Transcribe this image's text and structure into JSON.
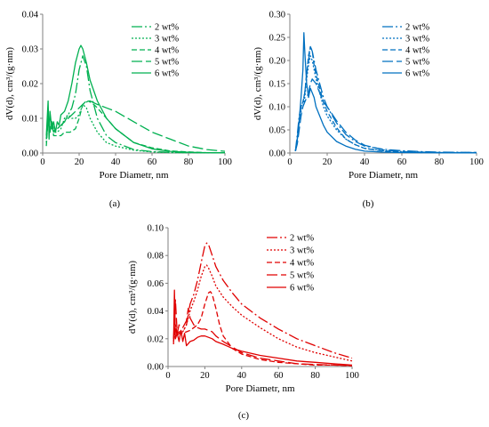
{
  "colors": {
    "green": "#00b050",
    "blue": "#0070c0",
    "red": "#e00000",
    "axis": "#808080"
  },
  "chart_data": [
    {
      "type": "line",
      "panel": "(a)",
      "color": "#00b050",
      "xlabel": "Pore Diametr, nm",
      "ylabel": "dV(d), cm³/(g·nm)",
      "xlim": [
        0,
        100
      ],
      "ylim": [
        0,
        0.04
      ],
      "xticks": [
        "0",
        "20",
        "40",
        "60",
        "80",
        "100"
      ],
      "yticks": [
        "0.00",
        "0.01",
        "0.02",
        "0.03",
        "0.04"
      ],
      "legend_position": "top-right",
      "series": [
        {
          "name": "2 wt%",
          "dash": "12 3 2 3",
          "x": [
            2,
            3,
            4,
            5,
            6,
            7,
            8,
            10,
            12,
            14,
            16,
            18,
            20,
            22,
            24,
            26,
            30,
            35,
            40,
            50,
            60,
            70,
            80,
            90,
            100
          ],
          "y": [
            0.004,
            0.009,
            0.006,
            0.008,
            0.006,
            0.007,
            0.007,
            0.008,
            0.009,
            0.011,
            0.013,
            0.017,
            0.024,
            0.028,
            0.025,
            0.018,
            0.01,
            0.005,
            0.003,
            0.001,
            0.0004,
            0.0002,
            0.0001,
            0.0001,
            0.0001
          ]
        },
        {
          "name": "3 wt%",
          "dash": "2 2",
          "x": [
            2,
            3,
            4,
            5,
            6,
            8,
            10,
            12,
            14,
            16,
            18,
            20,
            22,
            24,
            26,
            30,
            35,
            40,
            50,
            60,
            70,
            80,
            90,
            100
          ],
          "y": [
            0.003,
            0.011,
            0.007,
            0.009,
            0.006,
            0.006,
            0.007,
            0.01,
            0.011,
            0.01,
            0.01,
            0.011,
            0.014,
            0.013,
            0.01,
            0.006,
            0.003,
            0.002,
            0.0008,
            0.0003,
            0.0001,
            0.0001,
            0.0001,
            0.0001
          ]
        },
        {
          "name": "4 wt%",
          "dash": "6 3",
          "x": [
            2,
            3,
            4,
            5,
            6,
            8,
            10,
            12,
            15,
            18,
            20,
            22,
            25,
            28,
            30,
            35,
            40,
            50,
            60,
            70,
            80,
            90,
            100
          ],
          "y": [
            0.002,
            0.01,
            0.006,
            0.009,
            0.005,
            0.005,
            0.005,
            0.006,
            0.006,
            0.007,
            0.01,
            0.014,
            0.015,
            0.014,
            0.013,
            0.01,
            0.007,
            0.003,
            0.0015,
            0.0006,
            0.0003,
            0.0001,
            0.0001
          ]
        },
        {
          "name": "5 wt%",
          "dash": "12 4",
          "x": [
            2,
            3,
            4,
            5,
            6,
            8,
            10,
            12,
            14,
            16,
            18,
            20,
            22,
            24,
            26,
            30,
            35,
            40,
            50,
            60,
            70,
            80,
            90,
            100
          ],
          "y": [
            0.004,
            0.009,
            0.007,
            0.009,
            0.007,
            0.007,
            0.008,
            0.009,
            0.01,
            0.011,
            0.012,
            0.013,
            0.014,
            0.015,
            0.015,
            0.014,
            0.013,
            0.012,
            0.009,
            0.006,
            0.004,
            0.002,
            0.001,
            0.0005
          ]
        },
        {
          "name": "6 wt%",
          "dash": "",
          "x": [
            2,
            3,
            3.5,
            4,
            5,
            6,
            7,
            8,
            9,
            10,
            12,
            14,
            16,
            18,
            20,
            21,
            22,
            24,
            26,
            30,
            35,
            40,
            50,
            60,
            70,
            80,
            90,
            100
          ],
          "y": [
            0.005,
            0.015,
            0.004,
            0.012,
            0.007,
            0.009,
            0.006,
            0.009,
            0.008,
            0.011,
            0.012,
            0.015,
            0.02,
            0.026,
            0.03,
            0.031,
            0.03,
            0.026,
            0.021,
            0.015,
            0.01,
            0.007,
            0.003,
            0.0012,
            0.0005,
            0.0002,
            0.0001,
            0.0001
          ]
        }
      ]
    },
    {
      "type": "line",
      "panel": "(b)",
      "color": "#0070c0",
      "xlabel": "Pore Diametr, nm",
      "ylabel": "dV(d), cm³/(g·nm)",
      "xlim": [
        0,
        100
      ],
      "ylim": [
        0,
        0.3
      ],
      "xticks": [
        "0",
        "20",
        "40",
        "60",
        "80",
        "100"
      ],
      "yticks": [
        "0.00",
        "0.05",
        "0.10",
        "0.15",
        "0.20",
        "0.25",
        "0.30"
      ],
      "legend_position": "top-right",
      "series": [
        {
          "name": "2 wt%",
          "dash": "12 3 2 3",
          "x": [
            3,
            4,
            5,
            6,
            7,
            8,
            9,
            10,
            11,
            12,
            13,
            14,
            16,
            18,
            20,
            25,
            30,
            35,
            40,
            50,
            60,
            70,
            80,
            90,
            100
          ],
          "y": [
            0.005,
            0.04,
            0.08,
            0.1,
            0.11,
            0.13,
            0.17,
            0.2,
            0.23,
            0.22,
            0.2,
            0.18,
            0.15,
            0.12,
            0.1,
            0.065,
            0.04,
            0.025,
            0.015,
            0.008,
            0.005,
            0.003,
            0.002,
            0.0015,
            0.001
          ]
        },
        {
          "name": "3 wt%",
          "dash": "2 2",
          "x": [
            3,
            4,
            5,
            6,
            7,
            8,
            9,
            10,
            11,
            12,
            13,
            14,
            16,
            18,
            20,
            25,
            30,
            35,
            40,
            50,
            60,
            70,
            80,
            90,
            100
          ],
          "y": [
            0.004,
            0.03,
            0.07,
            0.09,
            0.1,
            0.12,
            0.16,
            0.19,
            0.21,
            0.2,
            0.18,
            0.16,
            0.13,
            0.1,
            0.08,
            0.05,
            0.03,
            0.018,
            0.01,
            0.005,
            0.003,
            0.002,
            0.001,
            0.001,
            0.001
          ]
        },
        {
          "name": "4 wt%",
          "dash": "6 3",
          "x": [
            3,
            4,
            5,
            6,
            7,
            8,
            9,
            10,
            11,
            12,
            13,
            14,
            16,
            18,
            20,
            25,
            30,
            35,
            40,
            50,
            60,
            70,
            80,
            90,
            100
          ],
          "y": [
            0.004,
            0.03,
            0.07,
            0.1,
            0.11,
            0.13,
            0.17,
            0.21,
            0.23,
            0.22,
            0.19,
            0.17,
            0.14,
            0.11,
            0.09,
            0.055,
            0.03,
            0.018,
            0.01,
            0.004,
            0.002,
            0.001,
            0.001,
            0.001,
            0.001
          ]
        },
        {
          "name": "5 wt%",
          "dash": "12 4",
          "x": [
            3,
            4,
            5,
            6,
            7,
            8,
            9,
            10,
            11,
            12,
            13,
            14,
            16,
            18,
            20,
            25,
            30,
            35,
            40,
            50,
            60,
            70,
            80,
            90,
            100
          ],
          "y": [
            0.004,
            0.02,
            0.05,
            0.08,
            0.1,
            0.11,
            0.12,
            0.13,
            0.15,
            0.16,
            0.155,
            0.15,
            0.13,
            0.11,
            0.1,
            0.07,
            0.045,
            0.028,
            0.017,
            0.007,
            0.003,
            0.002,
            0.001,
            0.001,
            0.001
          ]
        },
        {
          "name": "6 wt%",
          "dash": "",
          "x": [
            3,
            4,
            5,
            6,
            7,
            7.5,
            8,
            9,
            10,
            11,
            12,
            13,
            14,
            16,
            18,
            20,
            25,
            30,
            35,
            40,
            50,
            60,
            70,
            80,
            90,
            100
          ],
          "y": [
            0.004,
            0.03,
            0.07,
            0.12,
            0.18,
            0.26,
            0.22,
            0.15,
            0.12,
            0.14,
            0.13,
            0.12,
            0.1,
            0.08,
            0.06,
            0.045,
            0.025,
            0.015,
            0.008,
            0.004,
            0.002,
            0.001,
            0.0008,
            0.0005,
            0.0004,
            0.0003
          ]
        }
      ]
    },
    {
      "type": "line",
      "panel": "(c)",
      "color": "#e00000",
      "xlabel": "Pore Diametr, nm",
      "ylabel": "dV(d), cm³/(g·nm)",
      "xlim": [
        0,
        100
      ],
      "ylim": [
        0,
        0.1
      ],
      "xticks": [
        "0",
        "20",
        "40",
        "60",
        "80",
        "100"
      ],
      "yticks": [
        "0.00",
        "0.02",
        "0.04",
        "0.06",
        "0.08",
        "0.10"
      ],
      "legend_position": "top-right",
      "series": [
        {
          "name": "2 wt%",
          "dash": "12 3 2 3",
          "x": [
            3,
            4,
            5,
            6,
            8,
            10,
            12,
            14,
            16,
            18,
            20,
            21,
            22,
            24,
            26,
            30,
            35,
            40,
            50,
            60,
            70,
            80,
            90,
            100
          ],
          "y": [
            0.02,
            0.03,
            0.024,
            0.025,
            0.025,
            0.03,
            0.045,
            0.052,
            0.062,
            0.075,
            0.087,
            0.089,
            0.088,
            0.08,
            0.072,
            0.062,
            0.053,
            0.045,
            0.035,
            0.027,
            0.02,
            0.015,
            0.01,
            0.006
          ]
        },
        {
          "name": "3 wt%",
          "dash": "2 2",
          "x": [
            3,
            4,
            5,
            6,
            8,
            10,
            12,
            14,
            16,
            18,
            20,
            21,
            22,
            24,
            26,
            30,
            35,
            40,
            50,
            60,
            70,
            80,
            90,
            100
          ],
          "y": [
            0.02,
            0.03,
            0.024,
            0.025,
            0.025,
            0.03,
            0.04,
            0.047,
            0.055,
            0.065,
            0.072,
            0.073,
            0.071,
            0.065,
            0.058,
            0.05,
            0.043,
            0.037,
            0.028,
            0.02,
            0.014,
            0.01,
            0.007,
            0.004
          ]
        },
        {
          "name": "4 wt%",
          "dash": "6 3",
          "x": [
            3,
            4,
            5,
            6,
            8,
            10,
            12,
            14,
            16,
            18,
            20,
            22,
            23,
            24,
            26,
            28,
            30,
            35,
            40,
            50,
            60,
            70,
            80,
            90,
            100
          ],
          "y": [
            0.018,
            0.028,
            0.022,
            0.024,
            0.024,
            0.025,
            0.026,
            0.028,
            0.03,
            0.035,
            0.045,
            0.053,
            0.054,
            0.052,
            0.042,
            0.03,
            0.022,
            0.013,
            0.009,
            0.005,
            0.003,
            0.002,
            0.001,
            0.001,
            0.0005
          ]
        },
        {
          "name": "5 wt%",
          "dash": "12 4",
          "x": [
            3,
            4,
            5,
            6,
            8,
            10,
            11,
            12,
            14,
            16,
            18,
            20,
            22,
            24,
            26,
            30,
            35,
            40,
            50,
            60,
            70,
            80,
            90,
            100
          ],
          "y": [
            0.02,
            0.048,
            0.024,
            0.03,
            0.028,
            0.033,
            0.042,
            0.035,
            0.03,
            0.028,
            0.027,
            0.027,
            0.026,
            0.025,
            0.022,
            0.018,
            0.014,
            0.01,
            0.006,
            0.004,
            0.002,
            0.0015,
            0.001,
            0.0008
          ]
        },
        {
          "name": "6 wt%",
          "dash": "",
          "x": [
            3,
            3.5,
            4,
            5,
            6,
            7,
            8,
            9,
            10,
            12,
            14,
            16,
            18,
            20,
            22,
            24,
            26,
            30,
            35,
            40,
            50,
            60,
            70,
            80,
            90,
            100
          ],
          "y": [
            0.016,
            0.055,
            0.02,
            0.024,
            0.018,
            0.026,
            0.018,
            0.024,
            0.015,
            0.018,
            0.019,
            0.021,
            0.022,
            0.022,
            0.021,
            0.02,
            0.018,
            0.016,
            0.013,
            0.011,
            0.008,
            0.006,
            0.004,
            0.003,
            0.002,
            0.001
          ]
        }
      ]
    }
  ]
}
